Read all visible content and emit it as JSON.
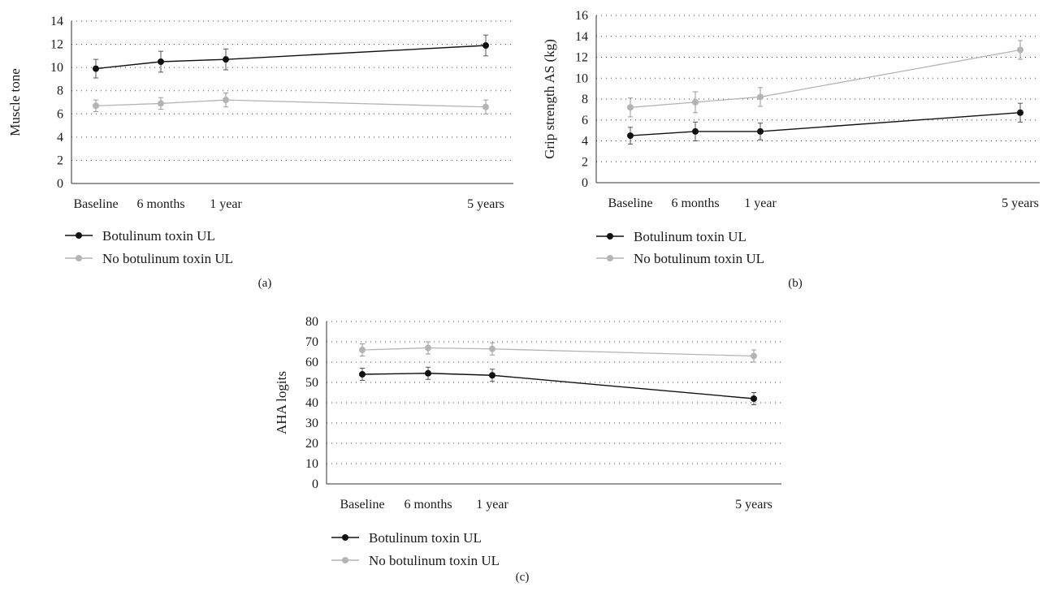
{
  "legend": {
    "series_a": "Botulinum toxin UL",
    "series_b": "No botulinum toxin UL"
  },
  "colors": {
    "botox": "#111111",
    "no_botox": "#b4b4b4"
  },
  "chart_data": [
    {
      "type": "line",
      "panel_label": "(a)",
      "ylabel": "Muscle tone",
      "categories": [
        "Baseline",
        "6 months",
        "1 year",
        "5 years"
      ],
      "ylim": [
        0,
        14
      ],
      "yticks": [
        0,
        2,
        4,
        6,
        8,
        10,
        12,
        14
      ],
      "grid": "dotted horizontal",
      "legend_position": "bottom-left",
      "series": [
        {
          "name": "Botulinum toxin UL",
          "values": [
            9.9,
            10.5,
            10.7,
            11.9
          ],
          "error": [
            0.8,
            0.9,
            0.9,
            0.9
          ]
        },
        {
          "name": "No botulinum toxin UL",
          "values": [
            6.7,
            6.9,
            7.2,
            6.6
          ],
          "error": [
            0.5,
            0.5,
            0.6,
            0.6
          ]
        }
      ]
    },
    {
      "type": "line",
      "panel_label": "(b)",
      "ylabel": "Grip strength AS (kg)",
      "categories": [
        "Baseline",
        "6 months",
        "1 year",
        "5 years"
      ],
      "ylim": [
        0,
        16
      ],
      "yticks": [
        0,
        2,
        4,
        6,
        8,
        10,
        12,
        14,
        16
      ],
      "grid": "dotted horizontal",
      "legend_position": "bottom-left",
      "series": [
        {
          "name": "Botulinum toxin UL",
          "values": [
            4.5,
            4.9,
            4.9,
            6.7
          ],
          "error": [
            0.8,
            0.9,
            0.8,
            0.9
          ]
        },
        {
          "name": "No botulinum toxin UL",
          "values": [
            7.2,
            7.7,
            8.2,
            12.7
          ],
          "error": [
            0.9,
            1.0,
            0.9,
            0.9
          ]
        }
      ]
    },
    {
      "type": "line",
      "panel_label": "(c)",
      "ylabel": "AHA logits",
      "categories": [
        "Baseline",
        "6 months",
        "1 year",
        "5 years"
      ],
      "ylim": [
        0,
        80
      ],
      "yticks": [
        0,
        10,
        20,
        30,
        40,
        50,
        60,
        70,
        80
      ],
      "grid": "dotted horizontal",
      "legend_position": "bottom-left",
      "series": [
        {
          "name": "Botulinum toxin UL",
          "values": [
            54,
            54.5,
            53.5,
            42
          ],
          "error": [
            3,
            3,
            3,
            3
          ]
        },
        {
          "name": "No botulinum toxin UL",
          "values": [
            66,
            67,
            66.5,
            63
          ],
          "error": [
            3,
            3,
            3,
            3
          ]
        }
      ]
    }
  ]
}
